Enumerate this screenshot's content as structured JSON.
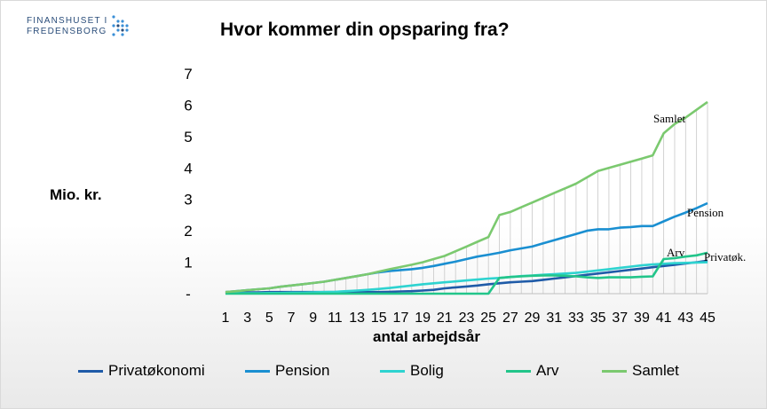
{
  "logo": {
    "line1": "FINANSHUSET I",
    "line2": "FREDENSBORG",
    "color": "#2a4d7a"
  },
  "chart_data": {
    "type": "line",
    "title": "Hvor kommer din opsparing fra?",
    "ylabel": "Mio. kr.",
    "xlabel": "antal arbejdsår",
    "ylim": [
      0,
      7
    ],
    "y_ticks": [
      "-",
      "1",
      "2",
      "3",
      "4",
      "5",
      "6",
      "7"
    ],
    "x": [
      1,
      2,
      3,
      4,
      5,
      6,
      7,
      8,
      9,
      10,
      11,
      12,
      13,
      14,
      15,
      16,
      17,
      18,
      19,
      20,
      21,
      22,
      23,
      24,
      25,
      26,
      27,
      28,
      29,
      30,
      31,
      32,
      33,
      34,
      35,
      36,
      37,
      38,
      39,
      40,
      41,
      42,
      43,
      44,
      45
    ],
    "x_tick_labels": [
      "1",
      "3",
      "5",
      "7",
      "9",
      "11",
      "13",
      "15",
      "17",
      "19",
      "21",
      "23",
      "25",
      "27",
      "29",
      "31",
      "33",
      "35",
      "37",
      "39",
      "41",
      "43",
      "45"
    ],
    "series": [
      {
        "name": "Privatøkonomi",
        "color": "#1f5ba8",
        "values": [
          0.02,
          0.03,
          0.04,
          0.04,
          0.05,
          0.05,
          0.05,
          0.05,
          0.05,
          0.05,
          0.05,
          0.05,
          0.05,
          0.05,
          0.05,
          0.06,
          0.07,
          0.08,
          0.1,
          0.12,
          0.17,
          0.2,
          0.23,
          0.26,
          0.3,
          0.33,
          0.36,
          0.38,
          0.4,
          0.44,
          0.48,
          0.52,
          0.56,
          0.6,
          0.64,
          0.68,
          0.72,
          0.76,
          0.8,
          0.84,
          0.88,
          0.92,
          0.96,
          1.0,
          1.05
        ]
      },
      {
        "name": "Pension",
        "color": "#1a8fd1",
        "values": [
          0.05,
          0.08,
          0.11,
          0.14,
          0.17,
          0.22,
          0.26,
          0.3,
          0.34,
          0.38,
          0.44,
          0.5,
          0.56,
          0.62,
          0.68,
          0.72,
          0.75,
          0.78,
          0.82,
          0.88,
          0.95,
          1.02,
          1.1,
          1.18,
          1.24,
          1.3,
          1.38,
          1.44,
          1.5,
          1.6,
          1.7,
          1.8,
          1.9,
          2.0,
          2.05,
          2.05,
          2.1,
          2.12,
          2.15,
          2.15,
          2.3,
          2.45,
          2.58,
          2.72,
          2.88
        ]
      },
      {
        "name": "Bolig",
        "color": "#2ed3d0",
        "values": [
          0.01,
          0.01,
          0.01,
          0.01,
          0.02,
          0.02,
          0.03,
          0.03,
          0.04,
          0.05,
          0.06,
          0.08,
          0.1,
          0.12,
          0.15,
          0.18,
          0.22,
          0.26,
          0.3,
          0.33,
          0.36,
          0.39,
          0.42,
          0.45,
          0.48,
          0.5,
          0.53,
          0.56,
          0.58,
          0.6,
          0.62,
          0.64,
          0.66,
          0.7,
          0.74,
          0.78,
          0.82,
          0.86,
          0.9,
          0.93,
          0.95,
          0.97,
          0.98,
          0.99,
          1.0
        ]
      },
      {
        "name": "Arv",
        "color": "#22c58a",
        "values": [
          0,
          0,
          0,
          0,
          0,
          0,
          0,
          0,
          0,
          0,
          0,
          0,
          0,
          0,
          0,
          0,
          0,
          0,
          0,
          0,
          0,
          0,
          0,
          0,
          0,
          0.5,
          0.53,
          0.55,
          0.57,
          0.58,
          0.58,
          0.57,
          0.55,
          0.52,
          0.5,
          0.52,
          0.52,
          0.52,
          0.54,
          0.55,
          1.1,
          1.13,
          1.18,
          1.22,
          1.3
        ]
      },
      {
        "name": "Samlet",
        "color": "#7bc96f",
        "values": [
          0.05,
          0.08,
          0.11,
          0.14,
          0.17,
          0.22,
          0.26,
          0.3,
          0.34,
          0.38,
          0.44,
          0.5,
          0.56,
          0.62,
          0.7,
          0.78,
          0.85,
          0.92,
          1.0,
          1.1,
          1.2,
          1.35,
          1.5,
          1.65,
          1.8,
          2.5,
          2.6,
          2.75,
          2.9,
          3.05,
          3.2,
          3.35,
          3.5,
          3.7,
          3.9,
          4.0,
          4.1,
          4.2,
          4.3,
          4.4,
          5.1,
          5.4,
          5.6,
          5.85,
          6.1
        ]
      }
    ],
    "annotations": [
      "Samlet",
      "Pension",
      "Arv",
      "Privatøk."
    ]
  }
}
